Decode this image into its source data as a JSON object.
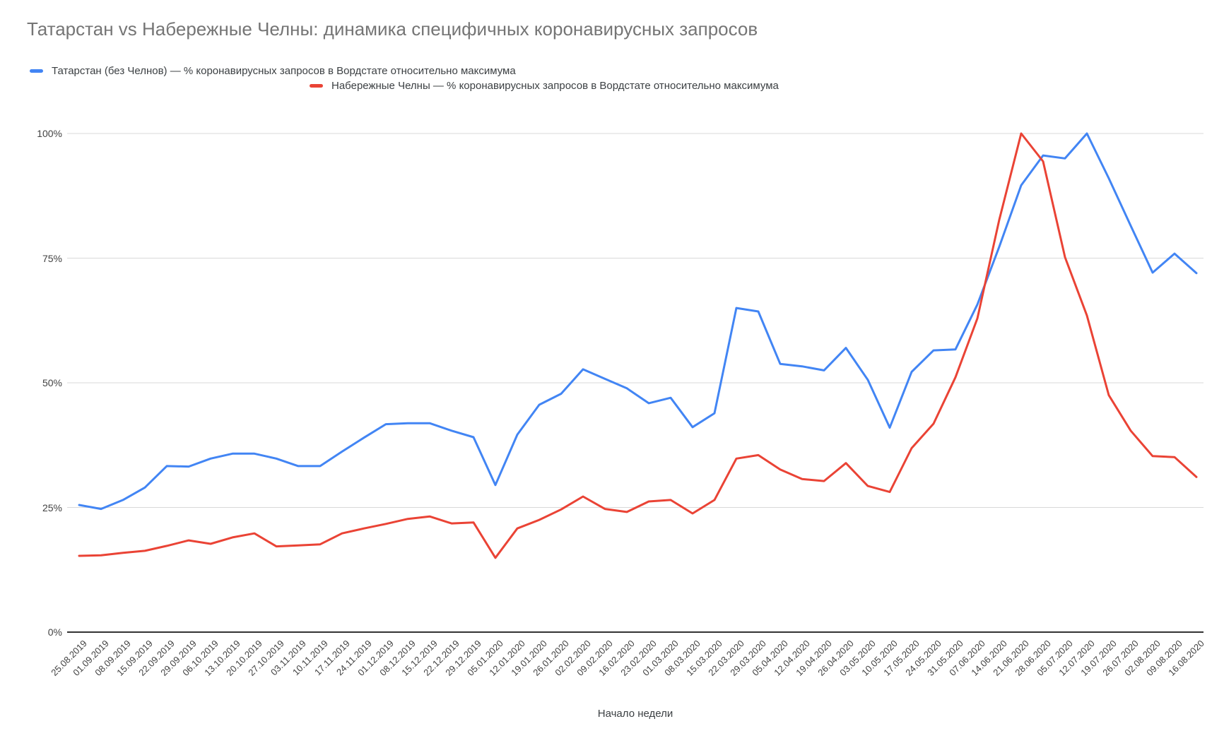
{
  "chart": {
    "title": "Татарстан vs Набережные Челны: динамика специфичных коронавирусных запросов",
    "x_axis_title": "Начало недели"
  },
  "chart_data": {
    "type": "line",
    "title": "Татарстан vs Набережные Челны: динамика специфичных коронавирусных запросов",
    "xlabel": "Начало недели",
    "ylabel": "",
    "ylim": [
      0,
      100
    ],
    "y_ticks": [
      "0%",
      "25%",
      "50%",
      "75%",
      "100%"
    ],
    "grid": true,
    "legend_position": "top",
    "categories": [
      "25.08.2019",
      "01.09.2019",
      "08.09.2019",
      "15.09.2019",
      "22.09.2019",
      "29.09.2019",
      "06.10.2019",
      "13.10.2019",
      "20.10.2019",
      "27.10.2019",
      "03.11.2019",
      "10.11.2019",
      "17.11.2019",
      "24.11.2019",
      "01.12.2019",
      "08.12.2019",
      "15.12.2019",
      "22.12.2019",
      "29.12.2019",
      "05.01.2020",
      "12.01.2020",
      "19.01.2020",
      "26.01.2020",
      "02.02.2020",
      "09.02.2020",
      "16.02.2020",
      "23.02.2020",
      "01.03.2020",
      "08.03.2020",
      "15.03.2020",
      "22.03.2020",
      "29.03.2020",
      "05.04.2020",
      "12.04.2020",
      "19.04.2020",
      "26.04.2020",
      "03.05.2020",
      "10.05.2020",
      "17.05.2020",
      "24.05.2020",
      "31.05.2020",
      "07.06.2020",
      "14.06.2020",
      "21.06.2020",
      "28.06.2020",
      "05.07.2020",
      "12.07.2020",
      "19.07.2020",
      "26.07.2020",
      "02.08.2020",
      "09.08.2020",
      "16.08.2020"
    ],
    "series": [
      {
        "name": "Татарстан (без Челнов) — % коронавирусных запросов в Вордстате относительно максимума",
        "color": "#4285f4",
        "values": [
          25.5,
          24.7,
          26.5,
          29.0,
          33.3,
          33.2,
          34.8,
          35.8,
          35.8,
          34.8,
          33.3,
          33.3,
          36.2,
          39.0,
          41.7,
          41.9,
          41.9,
          40.4,
          39.1,
          29.5,
          39.6,
          45.6,
          47.8,
          52.7,
          50.8,
          48.9,
          45.9,
          47.0,
          41.1,
          43.9,
          65.0,
          64.3,
          53.8,
          53.3,
          52.5,
          57.0,
          50.6,
          41.0,
          52.2,
          56.5,
          56.7,
          65.7,
          77.3,
          89.6,
          95.6,
          95.0,
          100,
          91.0,
          81.5,
          72.1,
          75.9,
          72.0
        ]
      },
      {
        "name": "Набережные Челны — % коронавирусных запросов в Вордстате относительно максимума",
        "color": "#ea4335",
        "values": [
          15.3,
          15.4,
          15.9,
          16.3,
          17.3,
          18.4,
          17.7,
          19.0,
          19.8,
          17.2,
          17.4,
          17.6,
          19.8,
          20.8,
          21.7,
          22.7,
          23.2,
          21.8,
          22.0,
          14.9,
          20.8,
          22.5,
          24.6,
          27.2,
          24.7,
          24.1,
          26.2,
          26.5,
          23.8,
          26.5,
          34.8,
          35.5,
          32.6,
          30.7,
          30.3,
          33.9,
          29.3,
          28.1,
          36.9,
          41.8,
          51.1,
          62.9,
          82.7,
          100,
          94.4,
          75.2,
          63.5,
          47.5,
          40.4,
          35.3,
          35.1,
          31.1
        ]
      }
    ],
    "axis_color": "#333333",
    "gridline_color": "#d9d9d9"
  }
}
